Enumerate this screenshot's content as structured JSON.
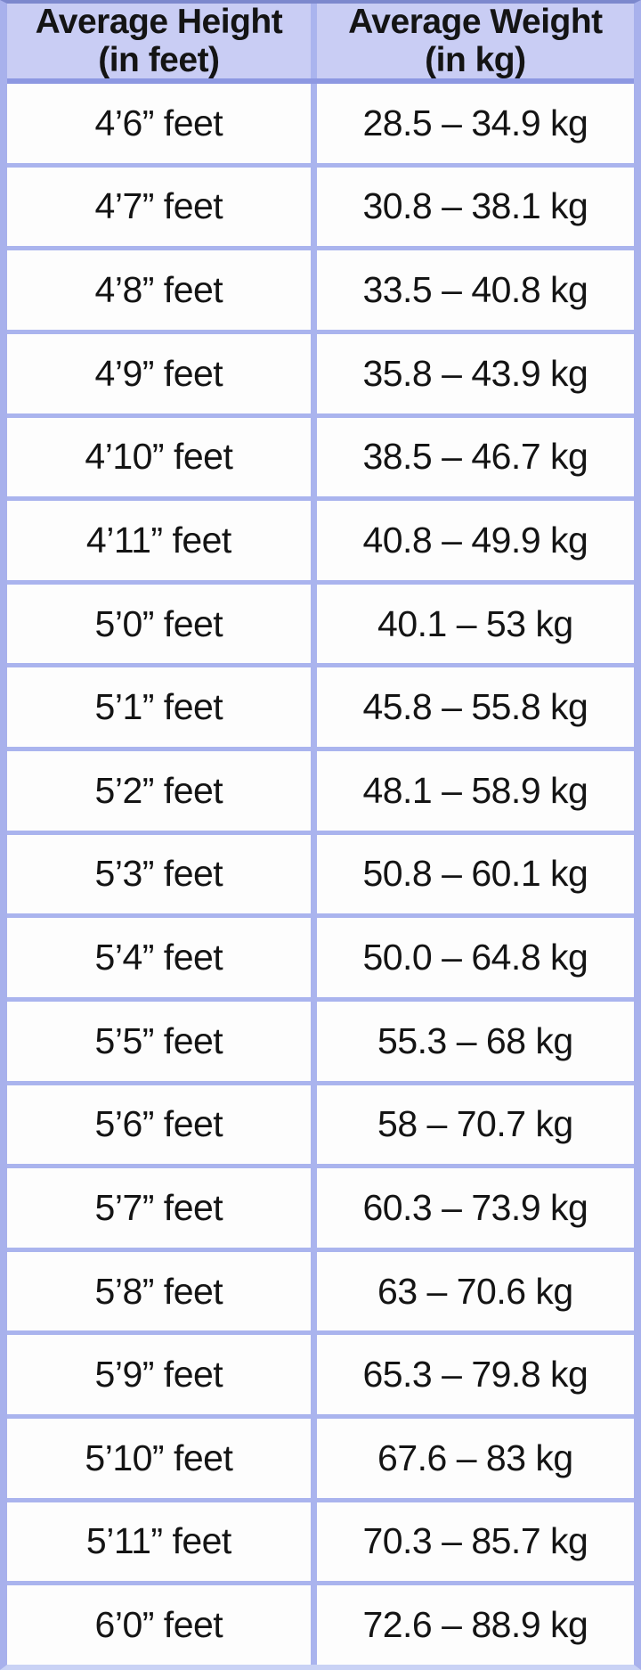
{
  "colors": {
    "header_bg": "#c9cdf4",
    "grid_border": "#aab4ee",
    "header_border": "#8d98e2",
    "cell_bg": "#fdfdfd",
    "outer_border": "#a8b1ec",
    "text": "#141414"
  },
  "table": {
    "columns": [
      {
        "line1": "Average Height",
        "line2": "(in feet)"
      },
      {
        "line1": "Average Weight",
        "line2": "(in kg)"
      }
    ],
    "rows": [
      {
        "height": "4’6” feet",
        "weight": "28.5 – 34.9 kg"
      },
      {
        "height": "4’7” feet",
        "weight": "30.8 – 38.1 kg"
      },
      {
        "height": "4’8” feet",
        "weight": "33.5 – 40.8 kg"
      },
      {
        "height": "4’9” feet",
        "weight": "35.8 – 43.9 kg"
      },
      {
        "height": "4’10” feet",
        "weight": "38.5 – 46.7 kg"
      },
      {
        "height": "4’11” feet",
        "weight": "40.8 – 49.9 kg"
      },
      {
        "height": "5’0” feet",
        "weight": "40.1 – 53 kg"
      },
      {
        "height": "5’1” feet",
        "weight": "45.8 – 55.8 kg"
      },
      {
        "height": "5’2” feet",
        "weight": "48.1 – 58.9 kg"
      },
      {
        "height": "5’3” feet",
        "weight": "50.8 – 60.1 kg"
      },
      {
        "height": "5’4” feet",
        "weight": "50.0 – 64.8 kg"
      },
      {
        "height": "5’5” feet",
        "weight": "55.3 – 68 kg"
      },
      {
        "height": "5’6” feet",
        "weight": "58 – 70.7 kg"
      },
      {
        "height": "5’7” feet",
        "weight": "60.3 – 73.9 kg"
      },
      {
        "height": "5’8” feet",
        "weight": "63 – 70.6 kg"
      },
      {
        "height": "5’9” feet",
        "weight": "65.3 – 79.8 kg"
      },
      {
        "height": "5’10” feet",
        "weight": "67.6 – 83 kg"
      },
      {
        "height": "5’11” feet",
        "weight": "70.3 – 85.7 kg"
      },
      {
        "height": "6’0” feet",
        "weight": "72.6 – 88.9 kg"
      }
    ]
  },
  "chart_data": {
    "type": "table",
    "title": "",
    "columns": [
      "Average Height (in feet)",
      "Average Weight (in kg)"
    ],
    "categories": [
      "4’6”",
      "4’7”",
      "4’8”",
      "4’9”",
      "4’10”",
      "4’11”",
      "5’0”",
      "5’1”",
      "5’2”",
      "5’3”",
      "5’4”",
      "5’5”",
      "5’6”",
      "5’7”",
      "5’8”",
      "5’9”",
      "5’10”",
      "5’11”",
      "6’0”"
    ],
    "weight_ranges_kg": [
      [
        28.5,
        34.9
      ],
      [
        30.8,
        38.1
      ],
      [
        33.5,
        40.8
      ],
      [
        35.8,
        43.9
      ],
      [
        38.5,
        46.7
      ],
      [
        40.8,
        49.9
      ],
      [
        40.1,
        53
      ],
      [
        45.8,
        55.8
      ],
      [
        48.1,
        58.9
      ],
      [
        50.8,
        60.1
      ],
      [
        50.0,
        64.8
      ],
      [
        55.3,
        68
      ],
      [
        58,
        70.7
      ],
      [
        60.3,
        73.9
      ],
      [
        63,
        70.6
      ],
      [
        65.3,
        79.8
      ],
      [
        67.6,
        83
      ],
      [
        70.3,
        85.7
      ],
      [
        72.6,
        88.9
      ]
    ],
    "rows": [
      [
        "4’6” feet",
        "28.5 – 34.9 kg"
      ],
      [
        "4’7” feet",
        "30.8 – 38.1 kg"
      ],
      [
        "4’8” feet",
        "33.5 – 40.8 kg"
      ],
      [
        "4’9” feet",
        "35.8 – 43.9 kg"
      ],
      [
        "4’10” feet",
        "38.5 – 46.7 kg"
      ],
      [
        "4’11” feet",
        "40.8 – 49.9 kg"
      ],
      [
        "5’0” feet",
        "40.1 – 53 kg"
      ],
      [
        "5’1” feet",
        "45.8 – 55.8 kg"
      ],
      [
        "5’2” feet",
        "48.1 – 58.9 kg"
      ],
      [
        "5’3” feet",
        "50.8 – 60.1 kg"
      ],
      [
        "5’4” feet",
        "50.0 – 64.8 kg"
      ],
      [
        "5’5” feet",
        "55.3 – 68 kg"
      ],
      [
        "5’6” feet",
        "58 – 70.7 kg"
      ],
      [
        "5’7” feet",
        "60.3 – 73.9 kg"
      ],
      [
        "5’8” feet",
        "63 – 70.6 kg"
      ],
      [
        "5’9” feet",
        "65.3 – 79.8 kg"
      ],
      [
        "5’10” feet",
        "67.6 – 83 kg"
      ],
      [
        "5’11” feet",
        "70.3 – 85.7 kg"
      ],
      [
        "6’0” feet",
        "72.6 – 88.9 kg"
      ]
    ]
  }
}
